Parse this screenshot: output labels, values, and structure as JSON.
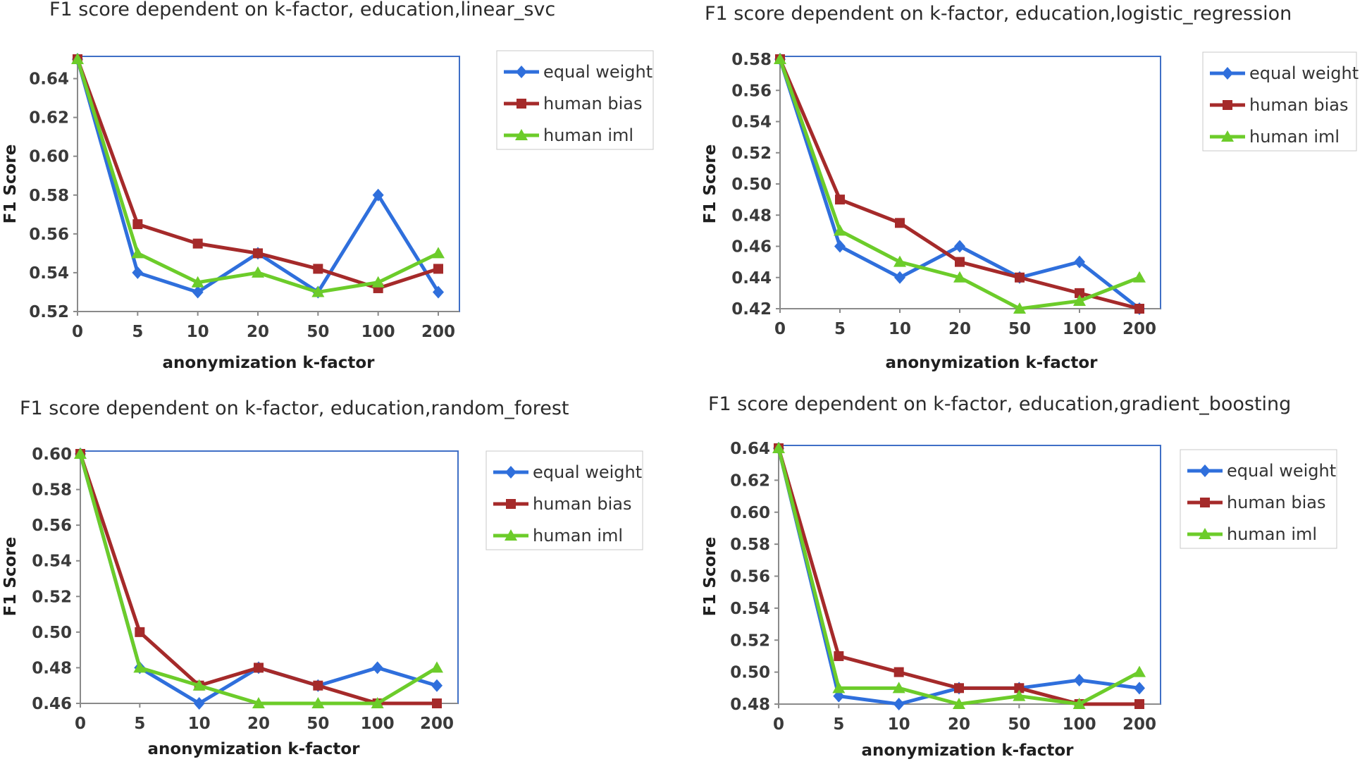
{
  "colors": {
    "equal_weight": "#2f6fdc",
    "human_bias": "#a52a2a",
    "human_iml": "#6ccc2a",
    "frame": "#3f6fc6"
  },
  "chart_data": [
    {
      "type": "line",
      "title": "F1 score dependent on k-factor, education,linear_svc",
      "xlabel": "anonymization  k-factor",
      "ylabel": "F1 Score",
      "categories": [
        "0",
        "5",
        "10",
        "20",
        "50",
        "100",
        "200"
      ],
      "ylim": [
        0.52,
        0.65
      ],
      "yticks": [
        "0.52",
        "0.54",
        "0.56",
        "0.58",
        "0.60",
        "0.62",
        "0.64"
      ],
      "ytick_values": [
        0.52,
        0.54,
        0.56,
        0.58,
        0.6,
        0.62,
        0.64
      ],
      "legend": [
        "equal weight",
        "human bias",
        "human iml"
      ],
      "series": [
        {
          "name": "equal weight",
          "marker": "diamond",
          "values": [
            0.65,
            0.54,
            0.53,
            0.55,
            0.53,
            0.58,
            0.53
          ]
        },
        {
          "name": "human bias",
          "marker": "square",
          "values": [
            0.65,
            0.565,
            0.555,
            0.55,
            0.542,
            0.532,
            0.542
          ]
        },
        {
          "name": "human iml",
          "marker": "triangle",
          "values": [
            0.65,
            0.55,
            0.535,
            0.54,
            0.53,
            0.535,
            0.55
          ]
        }
      ]
    },
    {
      "type": "line",
      "title": "F1 score dependent on k-factor, education,logistic_regression",
      "xlabel": "anonymization  k-factor",
      "ylabel": "F1 Score",
      "categories": [
        "0",
        "5",
        "10",
        "20",
        "50",
        "100",
        "200"
      ],
      "ylim": [
        0.42,
        0.58
      ],
      "yticks": [
        "0.42",
        "0.44",
        "0.46",
        "0.48",
        "0.50",
        "0.52",
        "0.54",
        "0.56",
        "0.58"
      ],
      "ytick_values": [
        0.42,
        0.44,
        0.46,
        0.48,
        0.5,
        0.52,
        0.54,
        0.56,
        0.58
      ],
      "legend": [
        "equal weight",
        "human bias",
        "human iml"
      ],
      "series": [
        {
          "name": "equal weight",
          "marker": "diamond",
          "values": [
            0.58,
            0.46,
            0.44,
            0.46,
            0.44,
            0.45,
            0.42
          ]
        },
        {
          "name": "human bias",
          "marker": "square",
          "values": [
            0.58,
            0.49,
            0.475,
            0.45,
            0.44,
            0.43,
            0.42
          ]
        },
        {
          "name": "human iml",
          "marker": "triangle",
          "values": [
            0.58,
            0.47,
            0.45,
            0.44,
            0.42,
            0.425,
            0.44
          ]
        }
      ]
    },
    {
      "type": "line",
      "title": "F1 score dependent on k-factor, education,random_forest",
      "xlabel": "anonymization  k-factor",
      "ylabel": "F1 Score",
      "categories": [
        "0",
        "5",
        "10",
        "20",
        "50",
        "100",
        "200"
      ],
      "ylim": [
        0.46,
        0.6
      ],
      "yticks": [
        "0.46",
        "0.48",
        "0.50",
        "0.52",
        "0.54",
        "0.56",
        "0.58",
        "0.60"
      ],
      "ytick_values": [
        0.46,
        0.48,
        0.5,
        0.52,
        0.54,
        0.56,
        0.58,
        0.6
      ],
      "legend": [
        "equal weight",
        "human bias",
        "human iml"
      ],
      "series": [
        {
          "name": "equal weight",
          "marker": "diamond",
          "values": [
            0.6,
            0.48,
            0.46,
            0.48,
            0.47,
            0.48,
            0.47
          ]
        },
        {
          "name": "human bias",
          "marker": "square",
          "values": [
            0.6,
            0.5,
            0.47,
            0.48,
            0.47,
            0.46,
            0.46
          ]
        },
        {
          "name": "human iml",
          "marker": "triangle",
          "values": [
            0.6,
            0.48,
            0.47,
            0.46,
            0.46,
            0.46,
            0.48
          ]
        }
      ]
    },
    {
      "type": "line",
      "title": "F1 score dependent on k-factor, education,gradient_boosting",
      "xlabel": "anonymization  k-factor",
      "ylabel": "F1 Score",
      "categories": [
        "0",
        "5",
        "10",
        "20",
        "50",
        "100",
        "200"
      ],
      "ylim": [
        0.48,
        0.64
      ],
      "yticks": [
        "0.48",
        "0.50",
        "0.52",
        "0.54",
        "0.56",
        "0.58",
        "0.60",
        "0.62",
        "0.64"
      ],
      "ytick_values": [
        0.48,
        0.5,
        0.52,
        0.54,
        0.56,
        0.58,
        0.6,
        0.62,
        0.64
      ],
      "legend": [
        "equal weight",
        "human bias",
        "human iml"
      ],
      "series": [
        {
          "name": "equal weight",
          "marker": "diamond",
          "values": [
            0.64,
            0.485,
            0.48,
            0.49,
            0.49,
            0.495,
            0.49
          ]
        },
        {
          "name": "human bias",
          "marker": "square",
          "values": [
            0.64,
            0.51,
            0.5,
            0.49,
            0.49,
            0.48,
            0.48
          ]
        },
        {
          "name": "human iml",
          "marker": "triangle",
          "values": [
            0.64,
            0.49,
            0.49,
            0.48,
            0.485,
            0.48,
            0.5
          ]
        }
      ]
    }
  ]
}
